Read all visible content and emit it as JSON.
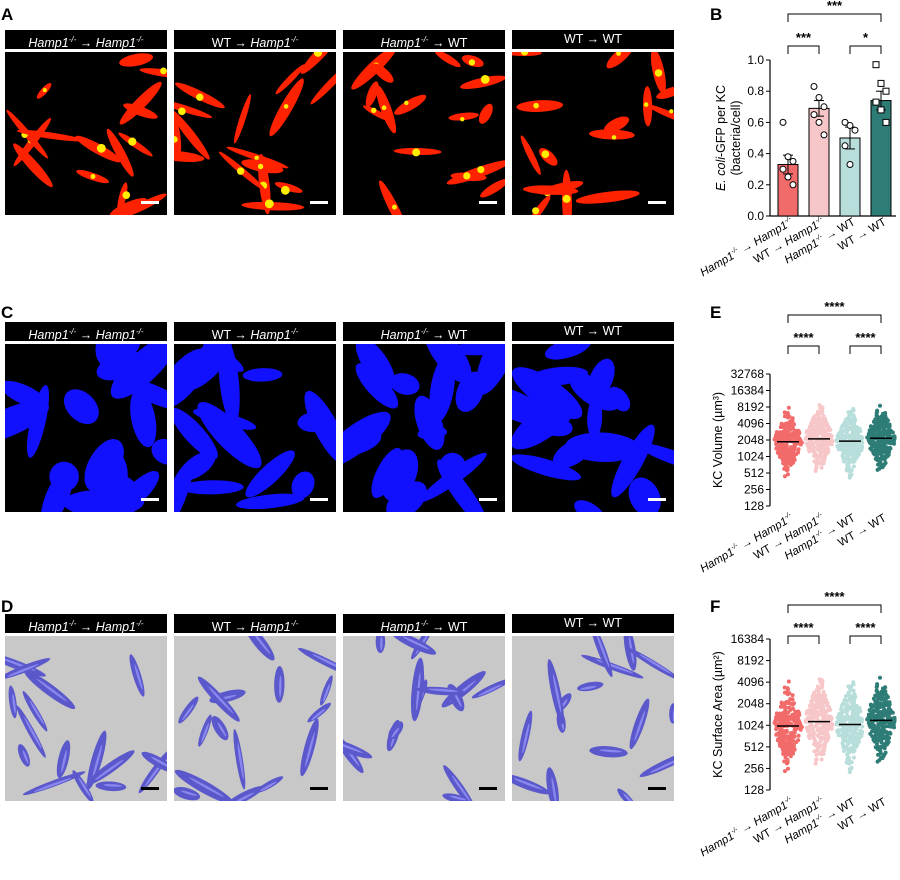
{
  "panels": {
    "A": {
      "letter": "A"
    },
    "B": {
      "letter": "B"
    },
    "C": {
      "letter": "C"
    },
    "D": {
      "letter": "D"
    },
    "E": {
      "letter": "E"
    },
    "F": {
      "letter": "F"
    }
  },
  "groups": [
    {
      "donor": "Hamp1",
      "donor_sup": "-/-",
      "arrow": "→",
      "recipient": "Hamp1",
      "recipient_sup": "-/-"
    },
    {
      "donor": "WT",
      "donor_sup": "",
      "arrow": "→",
      "recipient": "Hamp1",
      "recipient_sup": "-/-"
    },
    {
      "donor": "Hamp1",
      "donor_sup": "-/-",
      "arrow": "→",
      "recipient": "WT",
      "recipient_sup": ""
    },
    {
      "donor": "WT",
      "donor_sup": "",
      "arrow": "→",
      "recipient": "WT",
      "recipient_sup": ""
    }
  ],
  "colors": {
    "group1": "#f26b6b",
    "group2": "#f7c6c8",
    "group3": "#b7dedb",
    "group4": "#2e7c76",
    "gfp_red": "#ff2200",
    "gfp_yellow": "#ffee00",
    "kc_blue": "#1111ff",
    "render_purple": "#5b58cc",
    "render_bg": "#c8c8c8"
  },
  "chart_data": [
    {
      "panel": "B",
      "type": "bar",
      "categories": [
        "Hamp1-/- → Hamp1-/-",
        "WT → Hamp1-/-",
        "Hamp1-/- → WT",
        "WT → WT"
      ],
      "values": [
        0.33,
        0.69,
        0.5,
        0.74
      ],
      "errors": [
        0.06,
        0.05,
        0.07,
        0.06
      ],
      "points": [
        [
          0.6,
          0.38,
          0.35,
          0.3,
          0.25,
          0.2
        ],
        [
          0.83,
          0.76,
          0.7,
          0.65,
          0.6,
          0.52
        ],
        [
          0.6,
          0.58,
          0.55,
          0.45,
          0.33
        ],
        [
          0.97,
          0.85,
          0.8,
          0.73,
          0.68,
          0.6
        ]
      ],
      "ylabel_italic": "E. coli",
      "ylabel_rest": "-GFP per KC",
      "ylabel2": "(bacteria/cell)",
      "ylim": [
        0,
        1.0
      ],
      "yticks": [
        "0.0",
        "0.2",
        "0.4",
        "0.6",
        "0.8",
        "1.0"
      ],
      "significance": [
        {
          "from": 0,
          "to": 3,
          "label": "***"
        },
        {
          "from": 0,
          "to": 1,
          "label": "***"
        },
        {
          "from": 2,
          "to": 3,
          "label": "*"
        }
      ]
    },
    {
      "panel": "E",
      "type": "scatter",
      "categories": [
        "Hamp1-/- → Hamp1-/-",
        "WT → Hamp1-/-",
        "Hamp1-/- → WT",
        "WT → WT"
      ],
      "medians": [
        1900,
        2150,
        1950,
        2200
      ],
      "ranges": [
        [
          140,
          12000
        ],
        [
          300,
          14000
        ],
        [
          140,
          12000
        ],
        [
          150,
          15000
        ]
      ],
      "ylabel": "KC Volume (µm³)",
      "yscale": "log2",
      "yticks": [
        "128",
        "256",
        "512",
        "1024",
        "2048",
        "4096",
        "8192",
        "16384",
        "32768"
      ],
      "significance": [
        {
          "from": 0,
          "to": 3,
          "label": "****"
        },
        {
          "from": 0,
          "to": 1,
          "label": "****"
        },
        {
          "from": 2,
          "to": 3,
          "label": "****"
        }
      ]
    },
    {
      "panel": "F",
      "type": "scatter",
      "categories": [
        "Hamp1-/- → Hamp1-/-",
        "WT → Hamp1-/-",
        "Hamp1-/- → WT",
        "WT → WT"
      ],
      "medians": [
        1000,
        1150,
        1050,
        1200
      ],
      "ranges": [
        [
          140,
          4500
        ],
        [
          200,
          4500
        ],
        [
          150,
          4500
        ],
        [
          140,
          8000
        ]
      ],
      "ylabel": "KC Surface Area (µm²)",
      "yscale": "log2",
      "yticks": [
        "128",
        "256",
        "512",
        "1024",
        "2048",
        "4096",
        "8192",
        "16384"
      ],
      "significance": [
        {
          "from": 0,
          "to": 3,
          "label": "****"
        },
        {
          "from": 0,
          "to": 1,
          "label": "****"
        },
        {
          "from": 2,
          "to": 3,
          "label": "****"
        }
      ]
    }
  ]
}
